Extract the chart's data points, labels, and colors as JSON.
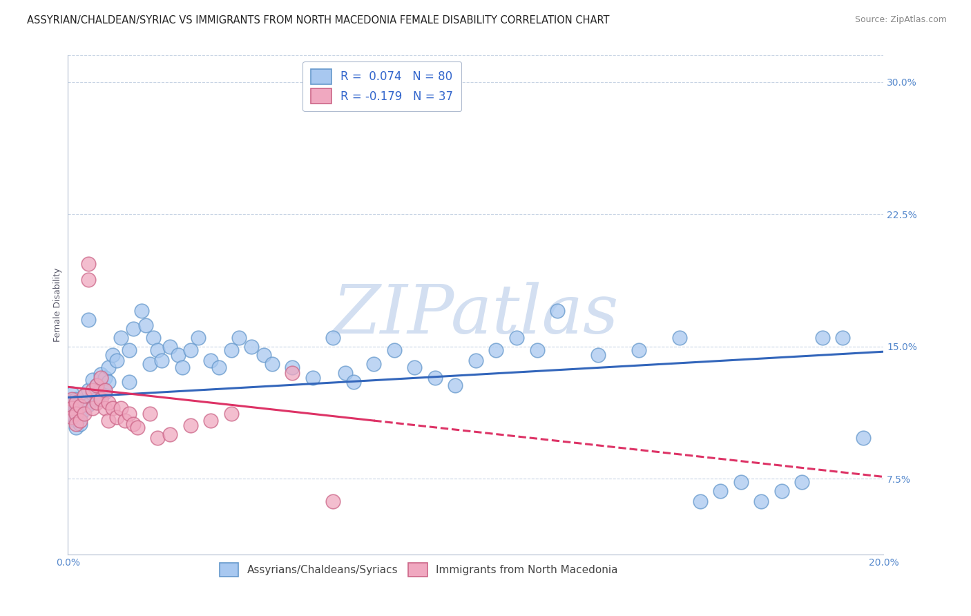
{
  "title": "ASSYRIAN/CHALDEAN/SYRIAC VS IMMIGRANTS FROM NORTH MACEDONIA FEMALE DISABILITY CORRELATION CHART",
  "source": "Source: ZipAtlas.com",
  "ylabel": "Female Disability",
  "series1_label": "Assyrians/Chaldeans/Syriacs",
  "series2_label": "Immigrants from North Macedonia",
  "xlim": [
    0.0,
    0.2
  ],
  "ylim": [
    0.032,
    0.315
  ],
  "yticks": [
    0.075,
    0.15,
    0.225,
    0.3
  ],
  "ytick_labels": [
    "7.5%",
    "15.0%",
    "22.5%",
    "30.0%"
  ],
  "xticks": [
    0.0,
    0.05,
    0.1,
    0.15,
    0.2
  ],
  "xtick_labels": [
    "0.0%",
    "",
    "",
    "",
    "20.0%"
  ],
  "series1_fill": "#a8c8f0",
  "series1_edge": "#6699cc",
  "series2_fill": "#f0a8c0",
  "series2_edge": "#cc6688",
  "line1_color": "#3366bb",
  "line2_color": "#dd3366",
  "watermark_text": "ZIPatlas",
  "watermark_color": "#c8d8ee",
  "background_color": "#ffffff",
  "grid_color": "#c8d4e4",
  "title_fontsize": 10.5,
  "source_fontsize": 9,
  "axis_label_fontsize": 9,
  "tick_label_fontsize": 10,
  "legend_fontsize": 12,
  "R1": 0.074,
  "N1": 80,
  "R2": -0.179,
  "N2": 37,
  "line1_x0": 0.0,
  "line1_y0": 0.121,
  "line1_x1": 0.2,
  "line1_y1": 0.147,
  "line2_x0": 0.0,
  "line2_y0": 0.127,
  "line2_x1": 0.2,
  "line2_y1": 0.076,
  "line2_solid_end": 0.075,
  "scatter1_x": [
    0.001,
    0.001,
    0.001,
    0.001,
    0.002,
    0.002,
    0.002,
    0.002,
    0.002,
    0.003,
    0.003,
    0.003,
    0.003,
    0.004,
    0.004,
    0.004,
    0.005,
    0.005,
    0.005,
    0.006,
    0.006,
    0.007,
    0.007,
    0.008,
    0.008,
    0.009,
    0.009,
    0.01,
    0.01,
    0.011,
    0.012,
    0.013,
    0.015,
    0.015,
    0.016,
    0.018,
    0.019,
    0.02,
    0.021,
    0.022,
    0.023,
    0.025,
    0.027,
    0.028,
    0.03,
    0.032,
    0.035,
    0.037,
    0.04,
    0.042,
    0.045,
    0.048,
    0.05,
    0.055,
    0.06,
    0.065,
    0.068,
    0.07,
    0.075,
    0.08,
    0.085,
    0.09,
    0.095,
    0.1,
    0.105,
    0.11,
    0.115,
    0.12,
    0.13,
    0.14,
    0.15,
    0.155,
    0.16,
    0.165,
    0.17,
    0.175,
    0.18,
    0.185,
    0.19,
    0.195
  ],
  "scatter1_y": [
    0.123,
    0.119,
    0.115,
    0.111,
    0.12,
    0.116,
    0.112,
    0.108,
    0.104,
    0.118,
    0.114,
    0.11,
    0.106,
    0.122,
    0.118,
    0.114,
    0.165,
    0.125,
    0.117,
    0.131,
    0.123,
    0.128,
    0.12,
    0.134,
    0.126,
    0.132,
    0.124,
    0.138,
    0.13,
    0.145,
    0.142,
    0.155,
    0.148,
    0.13,
    0.16,
    0.17,
    0.162,
    0.14,
    0.155,
    0.148,
    0.142,
    0.15,
    0.145,
    0.138,
    0.148,
    0.155,
    0.142,
    0.138,
    0.148,
    0.155,
    0.15,
    0.145,
    0.14,
    0.138,
    0.132,
    0.155,
    0.135,
    0.13,
    0.14,
    0.148,
    0.138,
    0.132,
    0.128,
    0.142,
    0.148,
    0.155,
    0.148,
    0.17,
    0.145,
    0.148,
    0.155,
    0.062,
    0.068,
    0.073,
    0.062,
    0.068,
    0.073,
    0.155,
    0.155,
    0.098
  ],
  "scatter2_x": [
    0.001,
    0.001,
    0.001,
    0.002,
    0.002,
    0.002,
    0.003,
    0.003,
    0.004,
    0.004,
    0.005,
    0.005,
    0.006,
    0.006,
    0.007,
    0.007,
    0.008,
    0.008,
    0.009,
    0.009,
    0.01,
    0.01,
    0.011,
    0.012,
    0.013,
    0.014,
    0.015,
    0.016,
    0.017,
    0.02,
    0.022,
    0.025,
    0.03,
    0.035,
    0.04,
    0.055,
    0.065
  ],
  "scatter2_y": [
    0.12,
    0.115,
    0.11,
    0.118,
    0.112,
    0.106,
    0.116,
    0.108,
    0.122,
    0.112,
    0.197,
    0.188,
    0.125,
    0.115,
    0.128,
    0.118,
    0.132,
    0.12,
    0.125,
    0.115,
    0.118,
    0.108,
    0.115,
    0.11,
    0.115,
    0.108,
    0.112,
    0.106,
    0.104,
    0.112,
    0.098,
    0.1,
    0.105,
    0.108,
    0.112,
    0.135,
    0.062
  ]
}
